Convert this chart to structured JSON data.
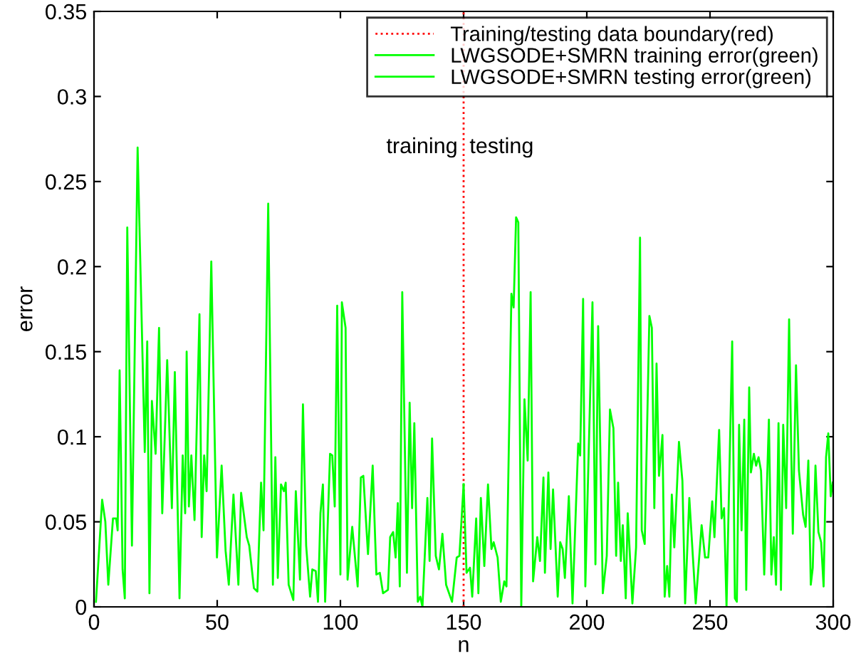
{
  "chart_data": {
    "type": "line",
    "xlabel": "n",
    "ylabel": "error",
    "xlim": [
      0,
      300
    ],
    "ylim": [
      0,
      0.35
    ],
    "xticks": [
      0,
      50,
      100,
      150,
      200,
      250,
      300
    ],
    "yticks": [
      0,
      0.05,
      0.1,
      0.15,
      0.2,
      0.25,
      0.3,
      0.35
    ],
    "grid": false,
    "legend": "top right",
    "line_style": "solid",
    "marker": "none",
    "ref_lines": [
      {
        "axis": "x",
        "value": 150,
        "label": "Training/testing data boundary(red)",
        "color": "#ff0000",
        "line_style": "dotted"
      }
    ],
    "annotations": [
      "training",
      "testing"
    ],
    "series": [
      {
        "name": "LWGSODE+SMRN training error(green)",
        "color": "#00ff00",
        "x": [
          0.8,
          3.3,
          4.6,
          5.8,
          7.7,
          9,
          9.6,
          10.4,
          11.6,
          12.5,
          13.5,
          15.4,
          17.7,
          20.6,
          21.6,
          22.5,
          23.5,
          25,
          26.4,
          27.7,
          29.7,
          31.6,
          32.8,
          34.7,
          36,
          37,
          37.6,
          38.5,
          39.5,
          40.8,
          42.8,
          43.7,
          44.7,
          45.7,
          47.6,
          49.9,
          51.8,
          53.4,
          54.7,
          56.6,
          58.6,
          59.7,
          62,
          63,
          64.9,
          66.3,
          67.8,
          68.8,
          70.7,
          72.6,
          73.6,
          74.6,
          75.9,
          77.1,
          77.8,
          79,
          80.9,
          81.9,
          83.6,
          84.8,
          86.1,
          87.7,
          88.6,
          90,
          90.9,
          91.9,
          92.9,
          93.8,
          95.8,
          96.7,
          97.7,
          98.7,
          100,
          100.6,
          102.1,
          102.9,
          104.8,
          107,
          108.3,
          109.3,
          111.2,
          113.1,
          114.6,
          116,
          117.3,
          119.3,
          120.2,
          121.4,
          122.4,
          123.3,
          124.1,
          125.1,
          127,
          128.1,
          129.1,
          130,
          131.4,
          132.4,
          133.3,
          135.3,
          136.2,
          137.2,
          138.7,
          140,
          141.4,
          142.9,
          145.3,
          147.2,
          148.3,
          150
        ],
        "values": [
          0.003,
          0.063,
          0.05,
          0.013,
          0.052,
          0.052,
          0.045,
          0.139,
          0.022,
          0.005,
          0.223,
          0.036,
          0.27,
          0.091,
          0.156,
          0.008,
          0.121,
          0.09,
          0.164,
          0.055,
          0.145,
          0.058,
          0.138,
          0.005,
          0.089,
          0.055,
          0.15,
          0.059,
          0.089,
          0.051,
          0.172,
          0.041,
          0.089,
          0.068,
          0.203,
          0.029,
          0.083,
          0.033,
          0.013,
          0.066,
          0.013,
          0.067,
          0.041,
          0.036,
          0.011,
          0.009,
          0.073,
          0.045,
          0.237,
          0.013,
          0.088,
          0.017,
          0.072,
          0.068,
          0.073,
          0.013,
          0.004,
          0.068,
          0.016,
          0.119,
          0.036,
          0.006,
          0.022,
          0.021,
          0.003,
          0.055,
          0.072,
          0.003,
          0.09,
          0.089,
          0.059,
          0.177,
          0.019,
          0.179,
          0.164,
          0.016,
          0.047,
          0.012,
          0.076,
          0.077,
          0.031,
          0.083,
          0.019,
          0.02,
          0.008,
          0.01,
          0.041,
          0.044,
          0.029,
          0.061,
          0.012,
          0.185,
          0.02,
          0.12,
          0.058,
          0.108,
          0.003,
          0.006,
          0.0,
          0.064,
          0.027,
          0.099,
          0.03,
          0.022,
          0.043,
          0.013,
          0.003,
          0.029,
          0.03,
          0.072
        ]
      },
      {
        "name": "LWGSODE+SMRN testing error(green)",
        "color": "#00ff00",
        "x": [
          150,
          151.2,
          152.6,
          153.5,
          155.1,
          156,
          157,
          158.4,
          159.9,
          161.3,
          162.2,
          163.8,
          165.1,
          166.5,
          167.4,
          169.4,
          170.3,
          171.3,
          172.2,
          173.4,
          174.7,
          176,
          177.2,
          178.2,
          179.9,
          181,
          182.4,
          183,
          184.4,
          185.3,
          186.3,
          188.2,
          189.2,
          190.2,
          191.1,
          192.7,
          194.2,
          196.5,
          197.3,
          198.5,
          199.4,
          202.3,
          203.5,
          204.6,
          206.5,
          208.1,
          209.4,
          210.8,
          211.9,
          212.7,
          213.8,
          214.6,
          215.8,
          216.6,
          218.5,
          220,
          221.6,
          222.3,
          223.5,
          225.4,
          226.4,
          227.4,
          228.3,
          229.3,
          230.7,
          231.6,
          232.6,
          233.5,
          234.5,
          235.5,
          237.4,
          238.8,
          239.9,
          241.6,
          244.2,
          246.6,
          248,
          249.3,
          250.9,
          251.8,
          253.7,
          254.7,
          255.7,
          256.7,
          259,
          260.1,
          260.9,
          261.8,
          262.8,
          263.9,
          264.7,
          265.9,
          266.6,
          267.8,
          268.7,
          269.7,
          270.7,
          272,
          273.9,
          274.9,
          275.9,
          276.8,
          277.8,
          278.8,
          279.7,
          280.9,
          282.1,
          283,
          283.6,
          284.9,
          286.1,
          287.8,
          288.8,
          289.9,
          290.9,
          291.7,
          292.8,
          294,
          295.1,
          296.1,
          297.1,
          298,
          299,
          299.8
        ],
        "values": [
          0.072,
          0.02,
          0.023,
          0.006,
          0.052,
          0.008,
          0.064,
          0.024,
          0.072,
          0.034,
          0.038,
          0.029,
          0.003,
          0.015,
          0.012,
          0.184,
          0.176,
          0.229,
          0.226,
          0.0,
          0.122,
          0.086,
          0.185,
          0.015,
          0.041,
          0.027,
          0.076,
          0.02,
          0.079,
          0.034,
          0.069,
          0.006,
          0.038,
          0.034,
          0.017,
          0.065,
          0.002,
          0.096,
          0.089,
          0.181,
          0.012,
          0.179,
          0.025,
          0.165,
          0.008,
          0.03,
          0.116,
          0.105,
          0.03,
          0.073,
          0.027,
          0.048,
          0.005,
          0.055,
          0.002,
          0.035,
          0.217,
          0.045,
          0.037,
          0.171,
          0.164,
          0.058,
          0.143,
          0.077,
          0.101,
          0.006,
          0.024,
          0.006,
          0.066,
          0.035,
          0.097,
          0.074,
          0.002,
          0.064,
          0.002,
          0.048,
          0.029,
          0.029,
          0.062,
          0.041,
          0.104,
          0.052,
          0.058,
          0.0,
          0.156,
          0.005,
          0.003,
          0.107,
          0.045,
          0.11,
          0.01,
          0.129,
          0.079,
          0.09,
          0.083,
          0.088,
          0.08,
          0.019,
          0.11,
          0.019,
          0.041,
          0.013,
          0.108,
          0.01,
          0.107,
          0.058,
          0.169,
          0.089,
          0.043,
          0.142,
          0.08,
          0.054,
          0.047,
          0.086,
          0.013,
          0.023,
          0.083,
          0.044,
          0.038,
          0.012,
          0.088,
          0.102,
          0.065,
          0.073
        ]
      }
    ]
  }
}
